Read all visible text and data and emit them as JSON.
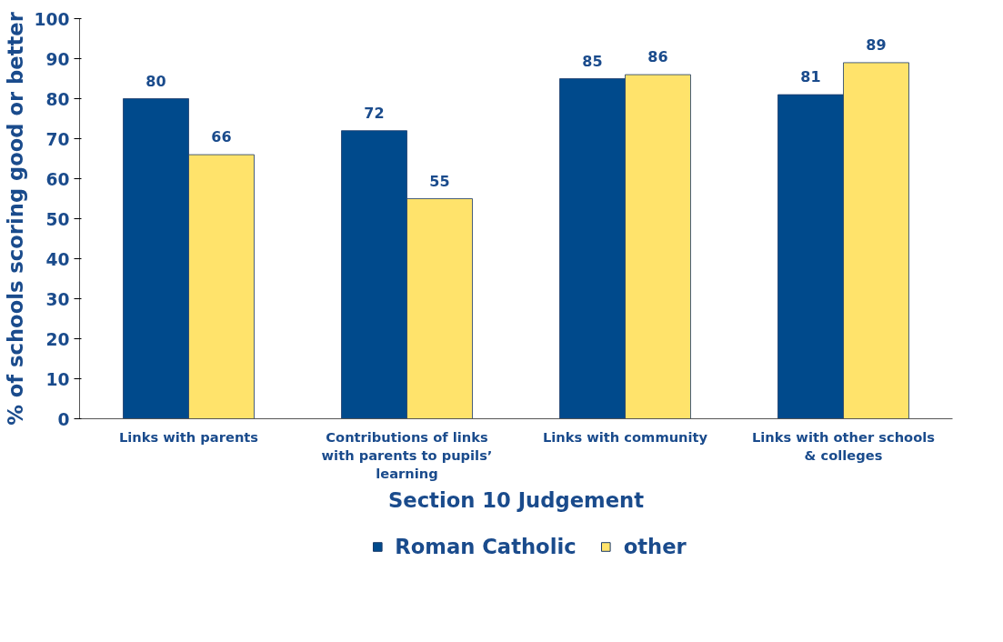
{
  "chart_data": {
    "type": "bar",
    "xlabel": "Section 10 Judgement",
    "ylabel": "% of schools scoring good or better",
    "categories": [
      "Links with parents",
      "Contributions of links with parents to pupils’ learning",
      "Links with community",
      "Links with other schools & colleges"
    ],
    "series": [
      {
        "name": "Roman Catholic",
        "color": "#004a8c",
        "values": [
          80,
          72,
          85,
          81
        ]
      },
      {
        "name": "other",
        "color": "#ffe36b",
        "values": [
          66,
          55,
          86,
          89
        ]
      }
    ],
    "ylim": [
      0,
      100
    ],
    "yticks": [
      0,
      10,
      20,
      30,
      40,
      50,
      60,
      70,
      80,
      90,
      100
    ],
    "data_labels": true,
    "grid": false,
    "legend": "bottom"
  }
}
